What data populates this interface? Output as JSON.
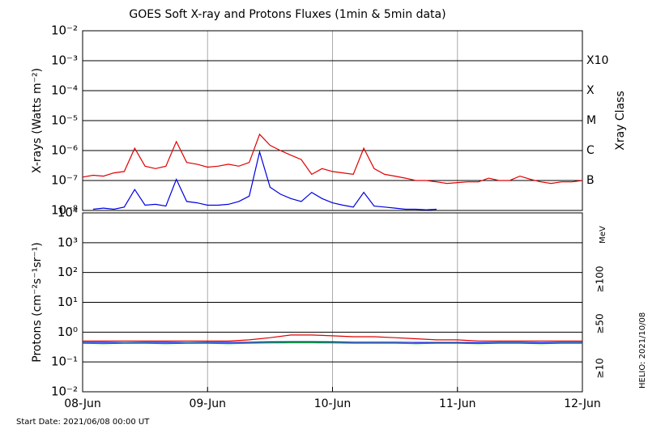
{
  "footer": {
    "start_date": "Start Date: 2021/06/08 00:00 UT",
    "credit": "HELIO: 2021/10/08"
  },
  "chart_data": [
    {
      "type": "line",
      "title": "GOES Soft X-ray and Protons Fluxes   (1min & 5min data)",
      "y_label": "X-rays (Watts m⁻²)",
      "y2_label": "Xray Class",
      "log_scale": true,
      "xlim": [
        "2021-06-08T00:00",
        "2021-06-12T00:00"
      ],
      "xticks": [
        "2021-06-09T00:00",
        "2021-06-10T00:00",
        "2021-06-11T00:00"
      ],
      "ylim": [
        1e-08,
        0.01
      ],
      "yticks": [
        {
          "value": 0.01,
          "label": "10⁻²"
        },
        {
          "value": 0.001,
          "label": "10⁻³"
        },
        {
          "value": 0.0001,
          "label": "10⁻⁴"
        },
        {
          "value": 1e-05,
          "label": "10⁻⁵"
        },
        {
          "value": 1e-06,
          "label": "10⁻⁶"
        },
        {
          "value": 1e-07,
          "label": "10⁻⁷"
        },
        {
          "value": 1e-08,
          "label": "10⁻⁸"
        }
      ],
      "class_labels": [
        {
          "value": 0.001,
          "label": "X10"
        },
        {
          "value": 0.0001,
          "label": "X"
        },
        {
          "value": 1e-05,
          "label": "M"
        },
        {
          "value": 1e-06,
          "label": "C"
        },
        {
          "value": 1e-07,
          "label": "B"
        }
      ],
      "x": [
        "2021-06-08T00:00",
        "2021-06-08T02:00",
        "2021-06-08T04:00",
        "2021-06-08T06:00",
        "2021-06-08T08:00",
        "2021-06-08T10:00",
        "2021-06-08T12:00",
        "2021-06-08T14:00",
        "2021-06-08T16:00",
        "2021-06-08T18:00",
        "2021-06-08T20:00",
        "2021-06-08T22:00",
        "2021-06-09T00:00",
        "2021-06-09T02:00",
        "2021-06-09T04:00",
        "2021-06-09T06:00",
        "2021-06-09T08:00",
        "2021-06-09T10:00",
        "2021-06-09T12:00",
        "2021-06-09T14:00",
        "2021-06-09T16:00",
        "2021-06-09T18:00",
        "2021-06-09T20:00",
        "2021-06-09T22:00",
        "2021-06-10T00:00",
        "2021-06-10T02:00",
        "2021-06-10T04:00",
        "2021-06-10T06:00",
        "2021-06-10T08:00",
        "2021-06-10T10:00",
        "2021-06-10T12:00",
        "2021-06-10T14:00",
        "2021-06-10T16:00",
        "2021-06-10T18:00",
        "2021-06-10T20:00",
        "2021-06-10T22:00",
        "2021-06-11T00:00",
        "2021-06-11T02:00",
        "2021-06-11T04:00",
        "2021-06-11T06:00",
        "2021-06-11T08:00",
        "2021-06-11T10:00",
        "2021-06-11T12:00",
        "2021-06-11T14:00",
        "2021-06-11T16:00",
        "2021-06-11T18:00",
        "2021-06-11T20:00",
        "2021-06-11T22:00",
        "2021-06-12T00:00"
      ],
      "series": [
        {
          "color": "#e00000",
          "values": [
            1.3e-07,
            1.5e-07,
            1.4e-07,
            1.8e-07,
            2e-07,
            1.2e-06,
            3e-07,
            2.5e-07,
            3e-07,
            2e-06,
            4e-07,
            3.5e-07,
            2.8e-07,
            3e-07,
            3.5e-07,
            3e-07,
            4e-07,
            3.5e-06,
            1.5e-06,
            1e-06,
            7e-07,
            5e-07,
            1.6e-07,
            2.5e-07,
            2e-07,
            1.8e-07,
            1.6e-07,
            1.2e-06,
            2.5e-07,
            1.6e-07,
            1.4e-07,
            1.2e-07,
            1e-07,
            1e-07,
            9e-08,
            8e-08,
            8.5e-08,
            9e-08,
            9e-08,
            1.2e-07,
            1e-07,
            1e-07,
            1.4e-07,
            1.1e-07,
            9e-08,
            8e-08,
            9e-08,
            9e-08,
            1e-07
          ]
        },
        {
          "color": "#0000e0",
          "values": [
            null,
            1.1e-08,
            1.2e-08,
            1.1e-08,
            1.3e-08,
            5e-08,
            1.5e-08,
            1.6e-08,
            1.4e-08,
            1.1e-07,
            2e-08,
            1.8e-08,
            1.5e-08,
            1.5e-08,
            1.6e-08,
            2e-08,
            3e-08,
            9e-07,
            6e-08,
            3.5e-08,
            2.5e-08,
            2e-08,
            4e-08,
            2.5e-08,
            1.8e-08,
            1.5e-08,
            1.3e-08,
            4e-08,
            1.4e-08,
            1.3e-08,
            1.2e-08,
            1.1e-08,
            1.1e-08,
            1.05e-08,
            1.1e-08,
            null,
            null,
            null,
            null,
            null,
            null,
            null,
            null,
            null,
            null,
            null,
            null,
            null,
            null
          ]
        }
      ]
    },
    {
      "type": "line",
      "y_label": "Protons (cm⁻²s⁻¹sr⁻¹)",
      "log_scale": true,
      "legend_unit": "MeV",
      "threshold": 10,
      "xlim": [
        "2021-06-08T00:00",
        "2021-06-12T00:00"
      ],
      "xticks": [
        {
          "value": "2021-06-08T00:00",
          "label": "08-Jun"
        },
        {
          "value": "2021-06-09T00:00",
          "label": "09-Jun"
        },
        {
          "value": "2021-06-10T00:00",
          "label": "10-Jun"
        },
        {
          "value": "2021-06-11T00:00",
          "label": "11-Jun"
        },
        {
          "value": "2021-06-12T00:00",
          "label": "12-Jun"
        }
      ],
      "ylim": [
        0.01,
        10000
      ],
      "yticks": [
        {
          "value": 10000,
          "label": "10⁴"
        },
        {
          "value": 1000,
          "label": "10³"
        },
        {
          "value": 100,
          "label": "10²"
        },
        {
          "value": 10,
          "label": "10¹"
        },
        {
          "value": 1,
          "label": "10⁰"
        },
        {
          "value": 0.1,
          "label": "10⁻¹"
        },
        {
          "value": 0.01,
          "label": "10⁻²"
        }
      ],
      "x": [
        "2021-06-08T00:00",
        "2021-06-08T04:00",
        "2021-06-08T08:00",
        "2021-06-08T12:00",
        "2021-06-08T16:00",
        "2021-06-08T20:00",
        "2021-06-09T00:00",
        "2021-06-09T04:00",
        "2021-06-09T08:00",
        "2021-06-09T12:00",
        "2021-06-09T16:00",
        "2021-06-09T20:00",
        "2021-06-10T00:00",
        "2021-06-10T04:00",
        "2021-06-10T08:00",
        "2021-06-10T12:00",
        "2021-06-10T16:00",
        "2021-06-10T20:00",
        "2021-06-11T00:00",
        "2021-06-11T04:00",
        "2021-06-11T08:00",
        "2021-06-11T12:00",
        "2021-06-11T16:00",
        "2021-06-11T20:00",
        "2021-06-12T00:00"
      ],
      "series": [
        {
          "name": "≥10",
          "color": "#e00000",
          "values": [
            0.5,
            0.5,
            0.5,
            0.5,
            0.5,
            0.5,
            0.5,
            0.5,
            0.55,
            0.65,
            0.8,
            0.8,
            0.75,
            0.7,
            0.7,
            0.65,
            0.6,
            0.55,
            0.55,
            0.5,
            0.5,
            0.5,
            0.5,
            0.5,
            0.5
          ]
        },
        {
          "name": "≥50",
          "color": "#0000e0",
          "values": [
            0.45,
            0.45,
            0.44,
            0.45,
            0.45,
            0.44,
            0.45,
            0.45,
            0.46,
            0.47,
            0.48,
            0.48,
            0.47,
            0.46,
            0.46,
            0.46,
            0.45,
            0.45,
            0.45,
            0.44,
            0.45,
            0.45,
            0.44,
            0.45,
            0.45
          ]
        },
        {
          "name": "≥100",
          "color": "#00c000",
          "values": [
            0.42,
            0.41,
            0.42,
            0.42,
            0.41,
            0.42,
            0.42,
            0.41,
            0.42,
            0.43,
            0.44,
            0.44,
            0.43,
            0.42,
            0.42,
            0.42,
            0.41,
            0.42,
            0.42,
            0.41,
            0.42,
            0.42,
            0.41,
            0.42,
            0.42
          ]
        }
      ]
    }
  ]
}
